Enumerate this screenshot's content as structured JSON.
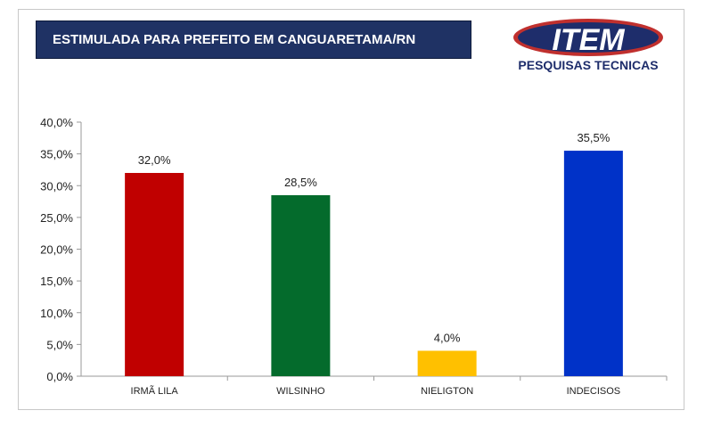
{
  "header": {
    "title": "ESTIMULADA PARA PREFEITO EM CANGUARETAMA/RN",
    "logo_main": "ITEM",
    "logo_sub": "PESQUISAS TECNICAS"
  },
  "colors": {
    "title_bg": "#1f3264",
    "logo_red": "#c0302e",
    "logo_navy": "#1e2d6b"
  },
  "chart_data": {
    "type": "bar",
    "categories": [
      "IRMÃ LILA",
      "WILSINHO",
      "NIELIGTON",
      "INDECISOS"
    ],
    "values": [
      32.0,
      28.5,
      4.0,
      35.5
    ],
    "value_labels": [
      "32,0%",
      "28,5%",
      "4,0%",
      "35,5%"
    ],
    "colors": [
      "#c00000",
      "#046b2c",
      "#ffc000",
      "#0032c8"
    ],
    "ylim": [
      0,
      40
    ],
    "yticks": [
      0,
      5,
      10,
      15,
      20,
      25,
      30,
      35,
      40
    ],
    "ytick_labels": [
      "0,0%",
      "5,0%",
      "10,0%",
      "15,0%",
      "20,0%",
      "25,0%",
      "30,0%",
      "35,0%",
      "40,0%"
    ],
    "grid": false,
    "legend": "none"
  }
}
